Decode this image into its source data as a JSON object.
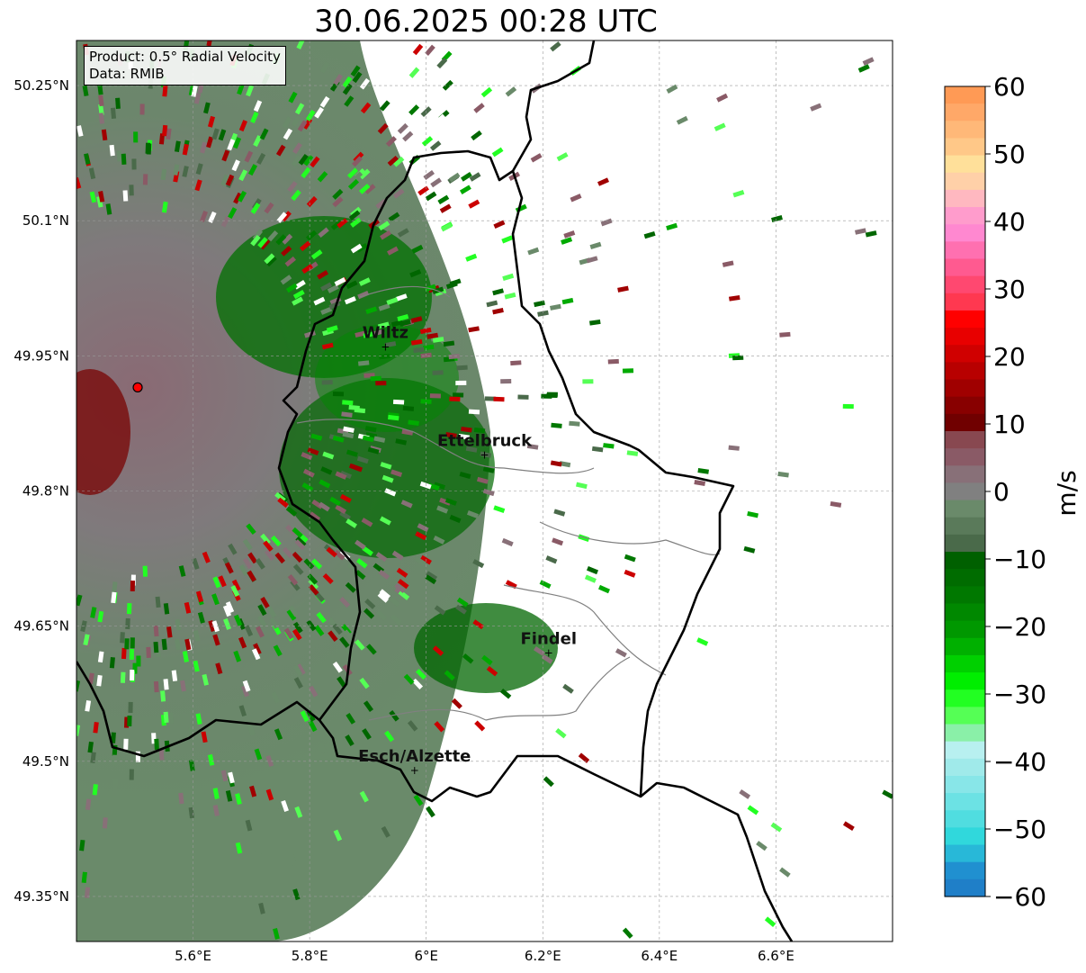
{
  "title": "30.06.2025 00:28 UTC",
  "info": {
    "product": "Product: 0.5° Radial Velocity",
    "data": "Data: RMIB"
  },
  "axes": {
    "lon_range": [
      5.4,
      6.8
    ],
    "lat_range": [
      49.3,
      50.3
    ],
    "x_ticks": [
      {
        "v": 5.6,
        "label": "5.6°E"
      },
      {
        "v": 5.8,
        "label": "5.8°E"
      },
      {
        "v": 6.0,
        "label": "6°E"
      },
      {
        "v": 6.2,
        "label": "6.2°E"
      },
      {
        "v": 6.4,
        "label": "6.4°E"
      },
      {
        "v": 6.6,
        "label": "6.6°E"
      }
    ],
    "y_ticks": [
      {
        "v": 50.25,
        "label": "50.25°N"
      },
      {
        "v": 50.1,
        "label": "50.1°N"
      },
      {
        "v": 49.95,
        "label": "49.95°N"
      },
      {
        "v": 49.8,
        "label": "49.8°N"
      },
      {
        "v": 49.65,
        "label": "49.65°N"
      },
      {
        "v": 49.5,
        "label": "49.5°N"
      },
      {
        "v": 49.35,
        "label": "49.35°N"
      }
    ]
  },
  "radar_site": {
    "lon": 5.505,
    "lat": 49.915,
    "color": "#ff0000"
  },
  "cities": [
    {
      "name": "Wiltz",
      "lon": 5.93,
      "lat": 49.97
    },
    {
      "name": "Ettelbruck",
      "lon": 6.1,
      "lat": 49.85
    },
    {
      "name": "Findel",
      "lon": 6.21,
      "lat": 49.63
    },
    {
      "name": "Esch/Alzette",
      "lon": 5.98,
      "lat": 49.5
    }
  ],
  "colorbar": {
    "label": "m/s",
    "range": [
      -60,
      60
    ],
    "ticks": [
      {
        "v": 60,
        "label": "60"
      },
      {
        "v": 50,
        "label": "50"
      },
      {
        "v": 40,
        "label": "40"
      },
      {
        "v": 30,
        "label": "30"
      },
      {
        "v": 20,
        "label": "20"
      },
      {
        "v": 10,
        "label": "10"
      },
      {
        "v": 0,
        "label": "0"
      },
      {
        "v": -10,
        "label": "−10"
      },
      {
        "v": -20,
        "label": "−20"
      },
      {
        "v": -30,
        "label": "−30"
      },
      {
        "v": -40,
        "label": "−40"
      },
      {
        "v": -50,
        "label": "−50"
      },
      {
        "v": -60,
        "label": "−60"
      }
    ],
    "colors_top_to_bottom": [
      "#ff9a55",
      "#ffa868",
      "#ffb878",
      "#ffc888",
      "#ffe09a",
      "#ffd0a8",
      "#ffb8c0",
      "#ff9ccc",
      "#ff88d0",
      "#ff70b0",
      "#ff5a90",
      "#ff4870",
      "#ff3850",
      "#ff0000",
      "#e80000",
      "#d00000",
      "#b80000",
      "#a00000",
      "#880000",
      "#700000",
      "#884850",
      "#8a5a66",
      "#887078",
      "#808080",
      "#6a8a6a",
      "#5a7a5a",
      "#4a6a4a",
      "#006000",
      "#006c00",
      "#007800",
      "#008800",
      "#009800",
      "#00b000",
      "#00d000",
      "#00ee00",
      "#22ff22",
      "#55ff55",
      "#8af0a8",
      "#b8f0f0",
      "#a0eaea",
      "#88e6e8",
      "#6ce2e4",
      "#50dde0",
      "#30d8dc",
      "#28b8d8",
      "#2090d0",
      "#1f7fc8"
    ]
  }
}
